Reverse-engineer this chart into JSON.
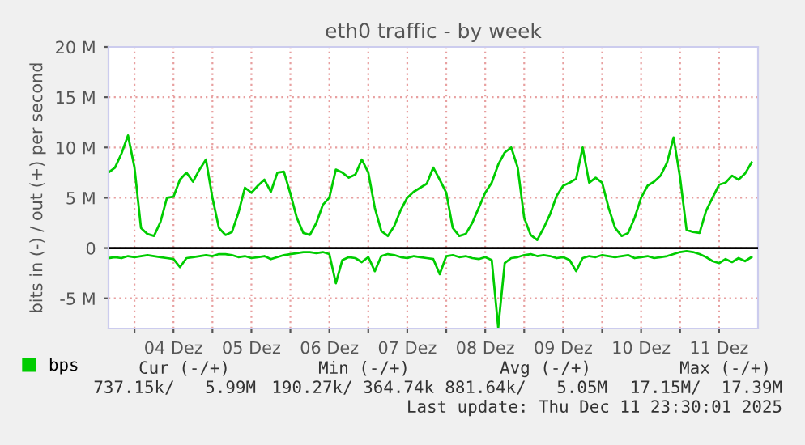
{
  "chart_data": {
    "type": "line",
    "title": "eth0 traffic - by week",
    "ylabel": "bits in (-) / out (+) per second",
    "x": [
      "2025-12-03T16:00",
      "2025-12-03T18:00",
      "2025-12-03T20:00",
      "2025-12-03T22:00",
      "2025-12-04T00:00",
      "2025-12-04T02:00",
      "2025-12-04T04:00",
      "2025-12-04T06:00",
      "2025-12-04T08:00",
      "2025-12-04T10:00",
      "2025-12-04T12:00",
      "2025-12-04T14:00",
      "2025-12-04T16:00",
      "2025-12-04T18:00",
      "2025-12-04T20:00",
      "2025-12-04T22:00",
      "2025-12-05T00:00",
      "2025-12-05T02:00",
      "2025-12-05T04:00",
      "2025-12-05T06:00",
      "2025-12-05T08:00",
      "2025-12-05T10:00",
      "2025-12-05T12:00",
      "2025-12-05T14:00",
      "2025-12-05T16:00",
      "2025-12-05T18:00",
      "2025-12-05T20:00",
      "2025-12-05T22:00",
      "2025-12-06T00:00",
      "2025-12-06T02:00",
      "2025-12-06T04:00",
      "2025-12-06T06:00",
      "2025-12-06T08:00",
      "2025-12-06T10:00",
      "2025-12-06T12:00",
      "2025-12-06T14:00",
      "2025-12-06T16:00",
      "2025-12-06T18:00",
      "2025-12-06T20:00",
      "2025-12-06T22:00",
      "2025-12-07T00:00",
      "2025-12-07T02:00",
      "2025-12-07T04:00",
      "2025-12-07T06:00",
      "2025-12-07T08:00",
      "2025-12-07T10:00",
      "2025-12-07T12:00",
      "2025-12-07T14:00",
      "2025-12-07T16:00",
      "2025-12-07T18:00",
      "2025-12-07T20:00",
      "2025-12-07T22:00",
      "2025-12-08T00:00",
      "2025-12-08T02:00",
      "2025-12-08T04:00",
      "2025-12-08T06:00",
      "2025-12-08T08:00",
      "2025-12-08T10:00",
      "2025-12-08T12:00",
      "2025-12-08T14:00",
      "2025-12-08T16:00",
      "2025-12-08T18:00",
      "2025-12-08T20:00",
      "2025-12-08T22:00",
      "2025-12-09T00:00",
      "2025-12-09T02:00",
      "2025-12-09T04:00",
      "2025-12-09T06:00",
      "2025-12-09T08:00",
      "2025-12-09T10:00",
      "2025-12-09T12:00",
      "2025-12-09T14:00",
      "2025-12-09T16:00",
      "2025-12-09T18:00",
      "2025-12-09T20:00",
      "2025-12-09T22:00",
      "2025-12-10T00:00",
      "2025-12-10T02:00",
      "2025-12-10T04:00",
      "2025-12-10T06:00",
      "2025-12-10T08:00",
      "2025-12-10T10:00",
      "2025-12-10T12:00",
      "2025-12-10T14:00",
      "2025-12-10T16:00",
      "2025-12-10T18:00",
      "2025-12-10T20:00",
      "2025-12-10T22:00",
      "2025-12-11T00:00",
      "2025-12-11T02:00",
      "2025-12-11T04:00",
      "2025-12-11T06:00",
      "2025-12-11T08:00",
      "2025-12-11T10:00",
      "2025-12-11T12:00",
      "2025-12-11T14:00",
      "2025-12-11T16:00",
      "2025-12-11T18:00",
      "2025-12-11T20:00",
      "2025-12-11T22:00"
    ],
    "series": [
      {
        "name": "bps",
        "color": "#00cc00",
        "values": [
          7.5,
          8.0,
          9.4,
          11.2,
          8.0,
          2.0,
          1.4,
          1.2,
          2.6,
          5.0,
          5.1,
          6.8,
          7.5,
          6.6,
          7.8,
          8.8,
          5.0,
          2.0,
          1.3,
          1.6,
          3.5,
          6.0,
          5.5,
          6.2,
          6.8,
          5.6,
          7.5,
          7.6,
          5.4,
          3.0,
          1.5,
          1.3,
          2.5,
          4.3,
          5.0,
          7.8,
          7.5,
          7.0,
          7.3,
          8.8,
          7.5,
          4.0,
          1.7,
          1.2,
          2.2,
          3.8,
          5.0,
          5.6,
          6.0,
          6.4,
          8.0,
          6.8,
          5.5,
          2.0,
          1.2,
          1.4,
          2.5,
          4.0,
          5.5,
          6.5,
          8.3,
          9.5,
          10.0,
          8.0,
          3.0,
          1.3,
          0.8,
          2.0,
          3.4,
          5.2,
          6.2,
          6.5,
          6.9,
          10.0,
          6.5,
          7.0,
          6.5,
          4.0,
          2.0,
          1.2,
          1.5,
          3.0,
          5.0,
          6.2,
          6.6,
          7.2,
          8.5,
          11.0,
          7.0,
          1.8,
          1.6,
          1.5,
          3.7,
          5.0,
          6.3,
          6.5,
          7.2,
          6.8,
          7.4,
          8.5
        ]
      },
      {
        "color": "#00cc00",
        "values": [
          -1.0,
          -0.9,
          -1.0,
          -0.8,
          -0.9,
          -0.8,
          -0.7,
          -0.8,
          -0.9,
          -1.0,
          -1.1,
          -1.9,
          -1.0,
          -0.9,
          -0.8,
          -0.7,
          -0.8,
          -0.6,
          -0.6,
          -0.7,
          -0.9,
          -0.8,
          -1.0,
          -0.9,
          -0.8,
          -1.1,
          -0.9,
          -0.7,
          -0.6,
          -0.5,
          -0.4,
          -0.4,
          -0.5,
          -0.4,
          -0.6,
          -3.5,
          -1.2,
          -0.9,
          -1.0,
          -1.4,
          -0.9,
          -2.3,
          -0.8,
          -0.6,
          -0.7,
          -0.9,
          -1.0,
          -0.8,
          -0.9,
          -1.0,
          -1.1,
          -2.6,
          -0.8,
          -0.7,
          -0.9,
          -0.8,
          -1.0,
          -1.1,
          -0.9,
          -1.2,
          -7.9,
          -1.5,
          -1.0,
          -0.9,
          -0.7,
          -0.6,
          -0.8,
          -0.7,
          -0.8,
          -1.0,
          -0.9,
          -1.2,
          -2.3,
          -1.0,
          -0.8,
          -0.9,
          -0.7,
          -0.8,
          -0.9,
          -0.8,
          -0.7,
          -1.0,
          -0.9,
          -0.8,
          -1.0,
          -0.9,
          -0.8,
          -0.6,
          -0.4,
          -0.3,
          -0.4,
          -0.6,
          -0.9,
          -1.3,
          -1.5,
          -1.1,
          -1.4,
          -1.0,
          -1.3,
          -0.9
        ]
      }
    ],
    "xlim": [
      "2025-12-03T16:00",
      "2025-12-12T00:00"
    ],
    "xticks": [
      {
        "value": "2025-12-04T00:00",
        "label": null
      },
      {
        "value": "2025-12-04T12:00",
        "label": "04 Dez"
      },
      {
        "value": "2025-12-05T00:00",
        "label": null
      },
      {
        "value": "2025-12-05T12:00",
        "label": "05 Dez"
      },
      {
        "value": "2025-12-06T00:00",
        "label": null
      },
      {
        "value": "2025-12-06T12:00",
        "label": "06 Dez"
      },
      {
        "value": "2025-12-07T00:00",
        "label": null
      },
      {
        "value": "2025-12-07T12:00",
        "label": "07 Dez"
      },
      {
        "value": "2025-12-08T00:00",
        "label": null
      },
      {
        "value": "2025-12-08T12:00",
        "label": "08 Dez"
      },
      {
        "value": "2025-12-09T00:00",
        "label": null
      },
      {
        "value": "2025-12-09T12:00",
        "label": "09 Dez"
      },
      {
        "value": "2025-12-10T00:00",
        "label": null
      },
      {
        "value": "2025-12-10T12:00",
        "label": "10 Dez"
      },
      {
        "value": "2025-12-11T00:00",
        "label": null
      },
      {
        "value": "2025-12-11T12:00",
        "label": "11 Dez"
      }
    ],
    "ylim": [
      -8,
      20
    ],
    "yticks": [
      {
        "value": -5,
        "label": "-5 M"
      },
      0,
      {
        "value": 5,
        "label": "5 M"
      },
      {
        "value": 10,
        "label": "10 M"
      },
      {
        "value": 15,
        "label": "15 M"
      },
      {
        "value": 20,
        "label": "20 M"
      }
    ],
    "ref_lines": [
      {
        "axis": "y",
        "value": 0,
        "color": "#000000"
      }
    ],
    "grid": true,
    "legend": "bottom left",
    "line_style": "solid",
    "annotations": [
      "Cur (-/+)",
      "Min (-/+)",
      "Avg (-/+)",
      "Max (-/+)",
      "737.15k/   5.99M",
      "190.27k/ 364.74k",
      "881.64k/   5.05M",
      "17.15M/  17.39M",
      "Last update: Thu Dec 11 23:30:01 2025"
    ]
  }
}
